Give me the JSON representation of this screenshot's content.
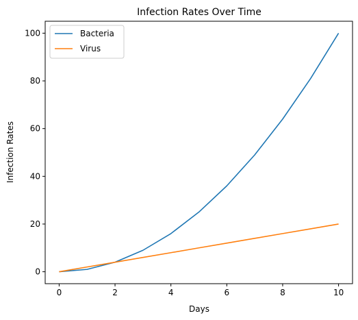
{
  "chart_data": {
    "type": "line",
    "title": "Infection Rates Over Time",
    "xlabel": "Days",
    "ylabel": "Infection Rates",
    "x": [
      0,
      1,
      2,
      3,
      4,
      5,
      6,
      7,
      8,
      9,
      10
    ],
    "series": [
      {
        "name": "Bacteria",
        "color": "#1f77b4",
        "values": [
          0,
          1,
          4,
          9,
          16,
          25,
          36,
          49,
          64,
          81,
          100
        ]
      },
      {
        "name": "Virus",
        "color": "#ff7f0e",
        "values": [
          0,
          2,
          4,
          6,
          8,
          10,
          12,
          14,
          16,
          18,
          20
        ]
      }
    ],
    "xlim": [
      -0.5,
      10.5
    ],
    "ylim": [
      -5,
      105
    ],
    "xticks": [
      0,
      2,
      4,
      6,
      8,
      10
    ],
    "yticks": [
      0,
      20,
      40,
      60,
      80,
      100
    ],
    "grid": false,
    "legend": "top-left"
  }
}
